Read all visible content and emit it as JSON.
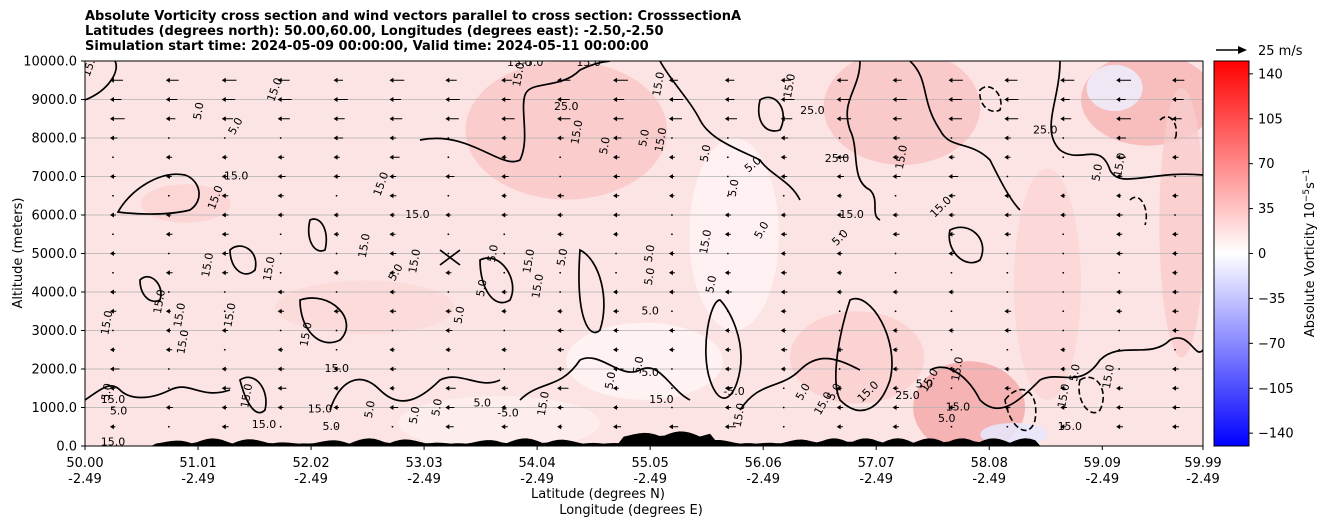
{
  "chart_data": {
    "type": "heatmap",
    "title_lines": [
      "Absolute Vorticity cross section and wind vectors parallel to cross section: CrosssectionA",
      "Latitudes (degrees north): 50.00,60.00, Longitudes (degrees east): -2.50,-2.50",
      "Simulation start time: 2024-05-09 00:00:00, Valid time: 2024-05-11 00:00:00"
    ],
    "ylabel": "Altitude (meters)",
    "xlabel_line1": "Latitude (degrees N)",
    "xlabel_line2": "Longitude (degrees E)",
    "ylim": [
      0,
      10000
    ],
    "xlim": [
      50.0,
      59.99
    ],
    "y_ticks": [
      {
        "value": 0,
        "label": "0.0"
      },
      {
        "value": 1000,
        "label": "1000.0"
      },
      {
        "value": 2000,
        "label": "2000.0"
      },
      {
        "value": 3000,
        "label": "3000.0"
      },
      {
        "value": 4000,
        "label": "4000.0"
      },
      {
        "value": 5000,
        "label": "5000.0"
      },
      {
        "value": 6000,
        "label": "6000.0"
      },
      {
        "value": 7000,
        "label": "7000.0"
      },
      {
        "value": 8000,
        "label": "8000.0"
      },
      {
        "value": 9000,
        "label": "9000.0"
      },
      {
        "value": 10000,
        "label": "10000.0"
      }
    ],
    "x_ticks": [
      {
        "value": 50.0,
        "lat": "50.00",
        "lon": "-2.49"
      },
      {
        "value": 51.01,
        "lat": "51.01",
        "lon": "-2.49"
      },
      {
        "value": 52.02,
        "lat": "52.02",
        "lon": "-2.49"
      },
      {
        "value": 53.03,
        "lat": "53.03",
        "lon": "-2.49"
      },
      {
        "value": 54.04,
        "lat": "54.04",
        "lon": "-2.49"
      },
      {
        "value": 55.05,
        "lat": "55.05",
        "lon": "-2.49"
      },
      {
        "value": 56.06,
        "lat": "56.06",
        "lon": "-2.49"
      },
      {
        "value": 57.07,
        "lat": "57.07",
        "lon": "-2.49"
      },
      {
        "value": 58.08,
        "lat": "58.08",
        "lon": "-2.49"
      },
      {
        "value": 59.09,
        "lat": "59.09",
        "lon": "-2.49"
      },
      {
        "value": 59.99,
        "lat": "59.99",
        "lon": "-2.49"
      }
    ],
    "colorbar": {
      "label": "Absolute Vorticity 10",
      "label_exp": "−5",
      "label_unit": "s",
      "label_unit_exp": "−1",
      "vmin": -150,
      "vmax": 150,
      "ticks": [
        "140",
        "105",
        "70",
        "35",
        "0",
        "−35",
        "−70",
        "−105",
        "−140"
      ],
      "tick_values": [
        140,
        105,
        70,
        35,
        0,
        -35,
        -70,
        -105,
        -140
      ],
      "colormap": "bwr"
    },
    "quiver_key": {
      "label": "25 m/s",
      "speed": 25
    },
    "grid": "horizontal",
    "contour_labels": [
      {
        "text": "15.0",
        "x": 50.05,
        "y": 9900,
        "rot": -70
      },
      {
        "text": "15.0",
        "x": 51.7,
        "y": 9250,
        "rot": -70
      },
      {
        "text": "5.0",
        "x": 51.02,
        "y": 8700,
        "rot": -80
      },
      {
        "text": "5.0",
        "x": 51.35,
        "y": 8300,
        "rot": -60
      },
      {
        "text": "15.0",
        "x": 51.35,
        "y": 7000,
        "rot": 0
      },
      {
        "text": "15.0",
        "x": 51.17,
        "y": 6450,
        "rot": -70
      },
      {
        "text": "15.0",
        "x": 53.88,
        "y": 9950,
        "rot": 0
      },
      {
        "text": "15.0",
        "x": 53.88,
        "y": 9650,
        "rot": -80
      },
      {
        "text": "-5.0",
        "x": 54.0,
        "y": 9950,
        "rot": 0
      },
      {
        "text": "15.0",
        "x": 54.5,
        "y": 9950,
        "rot": 0
      },
      {
        "text": "25.0",
        "x": 54.3,
        "y": 8800,
        "rot": 0
      },
      {
        "text": "15.0",
        "x": 54.4,
        "y": 8150,
        "rot": -80
      },
      {
        "text": "5.0",
        "x": 54.65,
        "y": 7800,
        "rot": -80
      },
      {
        "text": "15.0",
        "x": 55.13,
        "y": 9400,
        "rot": -80
      },
      {
        "text": "5.0",
        "x": 55.0,
        "y": 8000,
        "rot": -80
      },
      {
        "text": "15.0",
        "x": 55.15,
        "y": 7950,
        "rot": -80
      },
      {
        "text": "5.0",
        "x": 55.55,
        "y": 7600,
        "rot": -80
      },
      {
        "text": "5.0",
        "x": 55.97,
        "y": 7300,
        "rot": -40
      },
      {
        "text": "5.0",
        "x": 55.8,
        "y": 6700,
        "rot": -80
      },
      {
        "text": "15.0",
        "x": 56.3,
        "y": 9350,
        "rot": -80
      },
      {
        "text": "25.0",
        "x": 56.5,
        "y": 8700,
        "rot": 0
      },
      {
        "text": "25.0",
        "x": 56.72,
        "y": 7450,
        "rot": 0
      },
      {
        "text": "15.0",
        "x": 56.85,
        "y": 6000,
        "rot": 0
      },
      {
        "text": "15.0",
        "x": 57.3,
        "y": 7500,
        "rot": -80
      },
      {
        "text": "15.0",
        "x": 57.65,
        "y": 6200,
        "rot": -45
      },
      {
        "text": "25.0",
        "x": 58.58,
        "y": 8200,
        "rot": 0
      },
      {
        "text": "15.0",
        "x": 59.25,
        "y": 7300,
        "rot": -80
      },
      {
        "text": "5.0",
        "x": 59.05,
        "y": 7100,
        "rot": -80
      },
      {
        "text": "15.0",
        "x": 52.97,
        "y": 6000,
        "rot": 0
      },
      {
        "text": "15.0",
        "x": 52.65,
        "y": 6800,
        "rot": -70
      },
      {
        "text": "15.0",
        "x": 52.5,
        "y": 5200,
        "rot": -80
      },
      {
        "text": "15.0",
        "x": 52.95,
        "y": 4800,
        "rot": -80
      },
      {
        "text": "5.0",
        "x": 52.78,
        "y": 4500,
        "rot": -60
      },
      {
        "text": "5.0",
        "x": 53.65,
        "y": 5000,
        "rot": -80
      },
      {
        "text": "15.0",
        "x": 53.97,
        "y": 4800,
        "rot": -80
      },
      {
        "text": "15.0",
        "x": 54.05,
        "y": 4150,
        "rot": -80
      },
      {
        "text": "5.0",
        "x": 54.27,
        "y": 4900,
        "rot": -80
      },
      {
        "text": "5.0",
        "x": 53.55,
        "y": 4100,
        "rot": -80
      },
      {
        "text": "5.0",
        "x": 53.35,
        "y": 3400,
        "rot": -80
      },
      {
        "text": "5.0",
        "x": 55.05,
        "y": 5000,
        "rot": -80
      },
      {
        "text": "5.0",
        "x": 55.05,
        "y": 4400,
        "rot": -80
      },
      {
        "text": "5.0",
        "x": 55.05,
        "y": 3500,
        "rot": 0
      },
      {
        "text": "15.0",
        "x": 55.55,
        "y": 5300,
        "rot": -80
      },
      {
        "text": "5.0",
        "x": 55.6,
        "y": 4200,
        "rot": -80
      },
      {
        "text": "5.0",
        "x": 56.05,
        "y": 5600,
        "rot": -60
      },
      {
        "text": "5.0",
        "x": 56.75,
        "y": 5400,
        "rot": -45
      },
      {
        "text": "15.0",
        "x": 51.1,
        "y": 4700,
        "rot": -80
      },
      {
        "text": "15.0",
        "x": 50.67,
        "y": 3750,
        "rot": -80
      },
      {
        "text": "15.0",
        "x": 50.85,
        "y": 3400,
        "rot": -80
      },
      {
        "text": "15.0",
        "x": 50.88,
        "y": 2700,
        "rot": -80
      },
      {
        "text": "15.0",
        "x": 50.2,
        "y": 3200,
        "rot": -80
      },
      {
        "text": "15.0",
        "x": 51.3,
        "y": 3400,
        "rot": -80
      },
      {
        "text": "15.0",
        "x": 51.65,
        "y": 4600,
        "rot": -80
      },
      {
        "text": "15.0",
        "x": 51.98,
        "y": 2900,
        "rot": -80
      },
      {
        "text": "15.0",
        "x": 52.25,
        "y": 2000,
        "rot": 0
      },
      {
        "text": "15.0",
        "x": 51.45,
        "y": 1300,
        "rot": -80
      },
      {
        "text": "15.0",
        "x": 50.25,
        "y": 1200,
        "rot": 0
      },
      {
        "text": "15.0",
        "x": 50.25,
        "y": 90,
        "rot": 0
      },
      {
        "text": "5.0",
        "x": 50.3,
        "y": 900,
        "rot": 0
      },
      {
        "text": "5.0",
        "x": 50.2,
        "y": 1400,
        "rot": -80
      },
      {
        "text": "15.0",
        "x": 51.6,
        "y": 550,
        "rot": 0
      },
      {
        "text": "15.0",
        "x": 52.1,
        "y": 950,
        "rot": 0
      },
      {
        "text": "5.0",
        "x": 52.2,
        "y": 500,
        "rot": 0
      },
      {
        "text": "5.0",
        "x": 52.55,
        "y": 950,
        "rot": -80
      },
      {
        "text": "5.0",
        "x": 52.95,
        "y": 800,
        "rot": -80
      },
      {
        "text": "5.0",
        "x": 53.15,
        "y": 1000,
        "rot": -80
      },
      {
        "text": "5.0",
        "x": 53.55,
        "y": 1100,
        "rot": 0
      },
      {
        "text": "-5.0",
        "x": 53.78,
        "y": 850,
        "rot": 0
      },
      {
        "text": "15.0",
        "x": 54.1,
        "y": 1100,
        "rot": -80
      },
      {
        "text": "5.0",
        "x": 54.7,
        "y": 1700,
        "rot": -80
      },
      {
        "text": "5.0",
        "x": 54.95,
        "y": 2100,
        "rot": -80
      },
      {
        "text": "5.0",
        "x": 55.05,
        "y": 1900,
        "rot": 0
      },
      {
        "text": "15.0",
        "x": 55.15,
        "y": 1200,
        "rot": 0
      },
      {
        "text": "-5.0",
        "x": 55.8,
        "y": 1400,
        "rot": 0
      },
      {
        "text": "15.0",
        "x": 55.85,
        "y": 800,
        "rot": -80
      },
      {
        "text": "5.0",
        "x": 56.42,
        "y": 1400,
        "rot": -60
      },
      {
        "text": "5.0",
        "x": 56.7,
        "y": 1400,
        "rot": -60
      },
      {
        "text": "15.0",
        "x": 56.6,
        "y": 1100,
        "rot": -60
      },
      {
        "text": "15.0",
        "x": 57.0,
        "y": 1400,
        "rot": -45
      },
      {
        "text": "15.0",
        "x": 57.55,
        "y": 1700,
        "rot": -60
      },
      {
        "text": "25.0",
        "x": 57.35,
        "y": 1300,
        "rot": 0
      },
      {
        "text": "5.0",
        "x": 57.5,
        "y": 1600,
        "rot": 0
      },
      {
        "text": "15.0",
        "x": 57.8,
        "y": 2000,
        "rot": -80
      },
      {
        "text": "15.0",
        "x": 58.75,
        "y": 1300,
        "rot": -80
      },
      {
        "text": "5.0",
        "x": 58.85,
        "y": 1900,
        "rot": -80
      },
      {
        "text": "15.0",
        "x": 59.15,
        "y": 1800,
        "rot": -80
      },
      {
        "text": "15.0",
        "x": 58.8,
        "y": 500,
        "rot": 0
      },
      {
        "text": "15.0",
        "x": 57.8,
        "y": 1000,
        "rot": 0
      },
      {
        "text": "5.0",
        "x": 57.7,
        "y": 700,
        "rot": 0
      }
    ]
  }
}
